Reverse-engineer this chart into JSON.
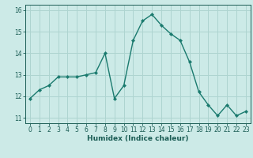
{
  "x": [
    0,
    1,
    2,
    3,
    4,
    5,
    6,
    7,
    8,
    9,
    10,
    11,
    12,
    13,
    14,
    15,
    16,
    17,
    18,
    19,
    20,
    21,
    22,
    23
  ],
  "y": [
    11.9,
    12.3,
    12.5,
    12.9,
    12.9,
    12.9,
    13.0,
    13.1,
    14.0,
    11.9,
    12.5,
    14.6,
    15.5,
    15.8,
    15.3,
    14.9,
    14.6,
    13.6,
    12.2,
    11.6,
    11.1,
    11.6,
    11.1,
    11.3
  ],
  "line_color": "#1a7a6e",
  "marker": "D",
  "markersize": 2.2,
  "linewidth": 1.0,
  "bg_color": "#cceae7",
  "grid_color": "#aed4d0",
  "xlabel": "Humidex (Indice chaleur)",
  "xlim": [
    -0.5,
    23.5
  ],
  "ylim": [
    10.75,
    16.25
  ],
  "yticks": [
    11,
    12,
    13,
    14,
    15,
    16
  ],
  "xticks": [
    0,
    1,
    2,
    3,
    4,
    5,
    6,
    7,
    8,
    9,
    10,
    11,
    12,
    13,
    14,
    15,
    16,
    17,
    18,
    19,
    20,
    21,
    22,
    23
  ],
  "tick_color": "#1a5c54",
  "label_fontsize": 6.5,
  "tick_fontsize": 5.5
}
